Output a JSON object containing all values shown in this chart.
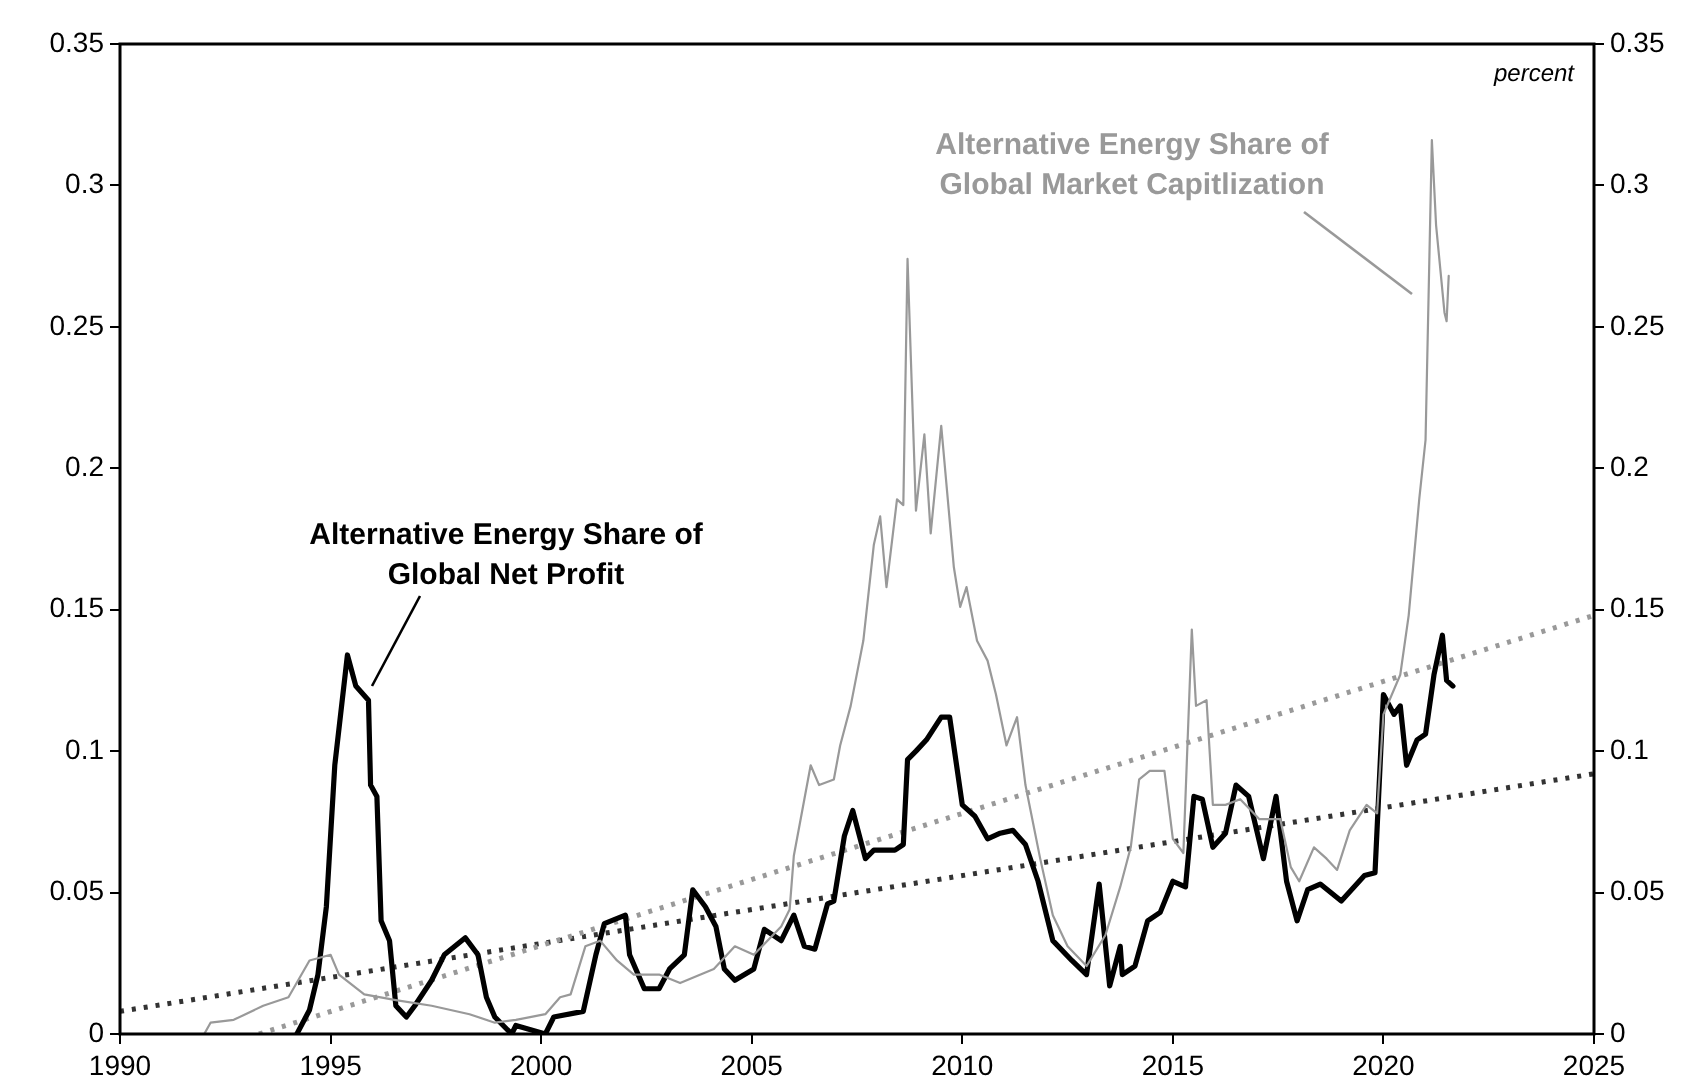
{
  "chart_data": {
    "type": "line",
    "annotations": [
      "percent"
    ],
    "xlim": [
      1990,
      2025
    ],
    "xticks": [
      1990,
      1995,
      2000,
      2005,
      2010,
      2015,
      2020,
      2025
    ],
    "ylim": [
      0,
      0.35
    ],
    "yticks": [
      0,
      0.05,
      0.1,
      0.15,
      0.2,
      0.25,
      0.3,
      0.35
    ],
    "y2lim": [
      0,
      0.35
    ],
    "y2ticks": [
      0,
      0.05,
      0.1,
      0.15,
      0.2,
      0.25,
      0.3,
      0.35
    ],
    "marker": "none",
    "legend": false,
    "series": [
      {
        "name": "Alternative Energy Share of Global Market Capitlization",
        "color": "#999999",
        "line_style": "solid",
        "x": [
          1992.0,
          1992.15,
          1992.7,
          1993.4,
          1994.0,
          1994.5,
          1995.0,
          1995.2,
          1995.8,
          1996.55,
          1997.4,
          1998.3,
          1998.9,
          1999.4,
          2000.1,
          2000.45,
          2000.7,
          2001.05,
          2001.4,
          2001.8,
          2002.2,
          2002.8,
          2003.3,
          2004.1,
          2004.6,
          2005.05,
          2005.7,
          2005.9,
          2006.0,
          2006.25,
          2006.4,
          2006.6,
          2006.95,
          2007.1,
          2007.35,
          2007.65,
          2007.9,
          2008.05,
          2008.2,
          2008.45,
          2008.6,
          2008.7,
          2008.9,
          2009.1,
          2009.25,
          2009.5,
          2009.8,
          2009.95,
          2010.1,
          2010.35,
          2010.6,
          2010.8,
          2011.05,
          2011.3,
          2011.5,
          2011.85,
          2012.15,
          2012.5,
          2012.95,
          2013.4,
          2013.75,
          2014.0,
          2014.2,
          2014.45,
          2014.8,
          2015.0,
          2015.25,
          2015.45,
          2015.55,
          2015.8,
          2015.95,
          2016.25,
          2016.6,
          2017.05,
          2017.55,
          2017.8,
          2018.0,
          2018.35,
          2018.65,
          2018.9,
          2019.2,
          2019.6,
          2019.85,
          2020.0,
          2020.4,
          2020.6,
          2020.85,
          2021.0,
          2021.15,
          2021.25,
          2021.45,
          2021.5,
          2021.55
        ],
        "values": [
          0,
          0.004,
          0.005,
          0.01,
          0.013,
          0.026,
          0.028,
          0.021,
          0.014,
          0.012,
          0.01,
          0.007,
          0.004,
          0.005,
          0.007,
          0.013,
          0.014,
          0.031,
          0.033,
          0.026,
          0.021,
          0.021,
          0.018,
          0.023,
          0.031,
          0.028,
          0.038,
          0.044,
          0.063,
          0.083,
          0.095,
          0.088,
          0.09,
          0.102,
          0.116,
          0.139,
          0.173,
          0.183,
          0.158,
          0.189,
          0.187,
          0.274,
          0.185,
          0.212,
          0.177,
          0.215,
          0.165,
          0.151,
          0.158,
          0.139,
          0.132,
          0.12,
          0.102,
          0.112,
          0.088,
          0.062,
          0.042,
          0.031,
          0.024,
          0.035,
          0.052,
          0.066,
          0.09,
          0.093,
          0.093,
          0.069,
          0.064,
          0.143,
          0.116,
          0.118,
          0.081,
          0.081,
          0.083,
          0.076,
          0.076,
          0.059,
          0.054,
          0.066,
          0.062,
          0.058,
          0.072,
          0.081,
          0.078,
          0.113,
          0.127,
          0.148,
          0.189,
          0.21,
          0.316,
          0.286,
          0.255,
          0.252,
          0.268
        ]
      },
      {
        "name": "Alternative Energy Share of Global Net Profit",
        "color": "#000000",
        "line_style": "solid",
        "x": [
          1994.2,
          1994.5,
          1994.7,
          1994.9,
          1995.1,
          1995.4,
          1995.6,
          1995.9,
          1995.95,
          1996.1,
          1996.2,
          1996.4,
          1996.55,
          1996.8,
          1997.0,
          1997.4,
          1997.7,
          1998.2,
          1998.5,
          1998.7,
          1998.9,
          1999.3,
          1999.4,
          2000.1,
          2000.3,
          2001.0,
          2001.3,
          2001.5,
          2002.0,
          2002.1,
          2002.45,
          2002.8,
          2003.05,
          2003.4,
          2003.6,
          2003.9,
          2004.15,
          2004.35,
          2004.6,
          2005.05,
          2005.3,
          2005.7,
          2006.0,
          2006.25,
          2006.5,
          2006.8,
          2006.95,
          2007.2,
          2007.4,
          2007.7,
          2007.9,
          2008.4,
          2008.6,
          2008.7,
          2008.9,
          2009.15,
          2009.5,
          2009.7,
          2010.0,
          2010.3,
          2010.6,
          2010.9,
          2011.2,
          2011.5,
          2011.8,
          2012.15,
          2012.6,
          2012.95,
          2013.25,
          2013.5,
          2013.75,
          2013.8,
          2014.1,
          2014.4,
          2014.7,
          2015.0,
          2015.3,
          2015.5,
          2015.7,
          2015.95,
          2016.25,
          2016.5,
          2016.8,
          2017.15,
          2017.45,
          2017.7,
          2017.95,
          2018.2,
          2018.5,
          2019.0,
          2019.55,
          2019.8,
          2020.0,
          2020.25,
          2020.4,
          2020.55,
          2020.8,
          2021.0,
          2021.2,
          2021.4,
          2021.5,
          2021.65
        ],
        "values": [
          0,
          0.0085,
          0.021,
          0.045,
          0.095,
          0.134,
          0.123,
          0.118,
          0.088,
          0.084,
          0.04,
          0.033,
          0.01,
          0.006,
          0.01,
          0.019,
          0.028,
          0.034,
          0.028,
          0.013,
          0.006,
          0,
          0.003,
          0,
          0.006,
          0.008,
          0.028,
          0.039,
          0.042,
          0.028,
          0.016,
          0.016,
          0.023,
          0.028,
          0.051,
          0.045,
          0.038,
          0.023,
          0.019,
          0.023,
          0.037,
          0.033,
          0.042,
          0.031,
          0.03,
          0.046,
          0.047,
          0.07,
          0.079,
          0.062,
          0.065,
          0.065,
          0.067,
          0.097,
          0.1,
          0.104,
          0.112,
          0.112,
          0.081,
          0.077,
          0.069,
          0.071,
          0.072,
          0.067,
          0.054,
          0.033,
          0.026,
          0.021,
          0.053,
          0.017,
          0.031,
          0.021,
          0.024,
          0.04,
          0.043,
          0.054,
          0.052,
          0.084,
          0.083,
          0.066,
          0.071,
          0.088,
          0.084,
          0.062,
          0.084,
          0.054,
          0.04,
          0.051,
          0.053,
          0.047,
          0.056,
          0.057,
          0.12,
          0.113,
          0.116,
          0.095,
          0.104,
          0.106,
          0.127,
          0.141,
          0.125,
          0.123
        ]
      },
      {
        "color": "#999999",
        "line_style": "dotted",
        "x": [
          1993.3,
          2025
        ],
        "values": [
          0,
          0.148
        ]
      },
      {
        "color": "#333333",
        "line_style": "dotted",
        "x": [
          1990,
          2025
        ],
        "values": [
          0.008,
          0.092
        ]
      }
    ]
  }
}
